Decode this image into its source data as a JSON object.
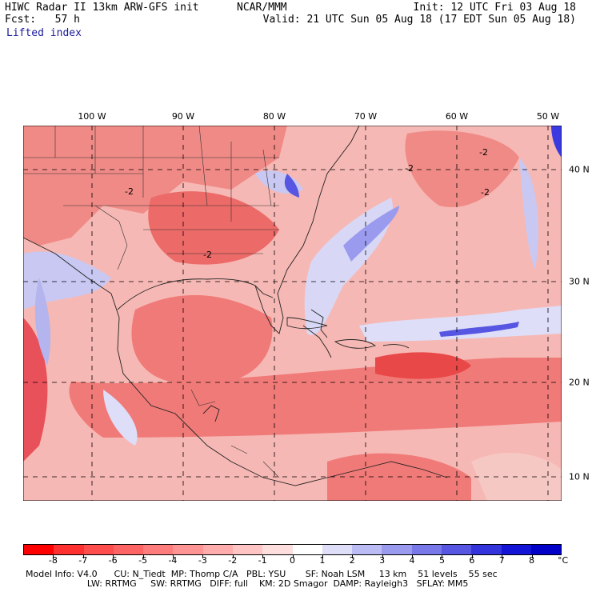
{
  "header": {
    "model": "HIWC Radar II 13km ARW-GFS init",
    "forecast": "Fcst:   57 h",
    "org": "NCAR/MMM",
    "init": "Init: 12 UTC Fri 03 Aug 18",
    "valid": "Valid: 21 UTC Sun 05 Aug 18 (17 EDT Sun 05 Aug 18)"
  },
  "subtitle": "Lifted index",
  "map": {
    "lon_labels": [
      "100 W",
      "90 W",
      "80 W",
      "70 W",
      "60 W",
      "50 W"
    ],
    "lat_labels": [
      "40 N",
      "30 N",
      "20 N",
      "10 N"
    ],
    "contour_labels": [
      "-2",
      "-2",
      "-2",
      "-2",
      "-2"
    ],
    "colors": {
      "neg_strong": "#e8202a",
      "neg_mid": "#f07a78",
      "neg_light": "#f6b8b4",
      "neutral": "#ffffff",
      "pos_light": "#c8c8f2",
      "pos_strong": "#3a3ae0"
    }
  },
  "colorbar": {
    "labels": [
      "-8",
      "-7",
      "-6",
      "-5",
      "-4",
      "-3",
      "-2",
      "-1",
      "0",
      "1",
      "2",
      "3",
      "4",
      "5",
      "6",
      "7",
      "8"
    ],
    "unit": "°C",
    "colors": [
      "#ff0000",
      "#ff3030",
      "#ff4c4c",
      "#ff6464",
      "#ff7c7c",
      "#ff9494",
      "#ffacac",
      "#ffc4c4",
      "#ffdede",
      "#ffffff",
      "#dedef8",
      "#bcbcf4",
      "#9a9aee",
      "#7878e8",
      "#5656e2",
      "#3434dc",
      "#1414d6",
      "#0000c8"
    ]
  },
  "footer": {
    "line1": "Model Info: V4.0      CU: N_Tiedt  MP: Thomp C/A   PBL: YSU       SF: Noah LSM     13 km    51 levels    55 sec",
    "line2": "                      LW: RRTMG     SW: RRTMG   DIFF: full    KM: 2D Smagor  DAMP: Rayleigh3   SFLAY: MM5"
  }
}
